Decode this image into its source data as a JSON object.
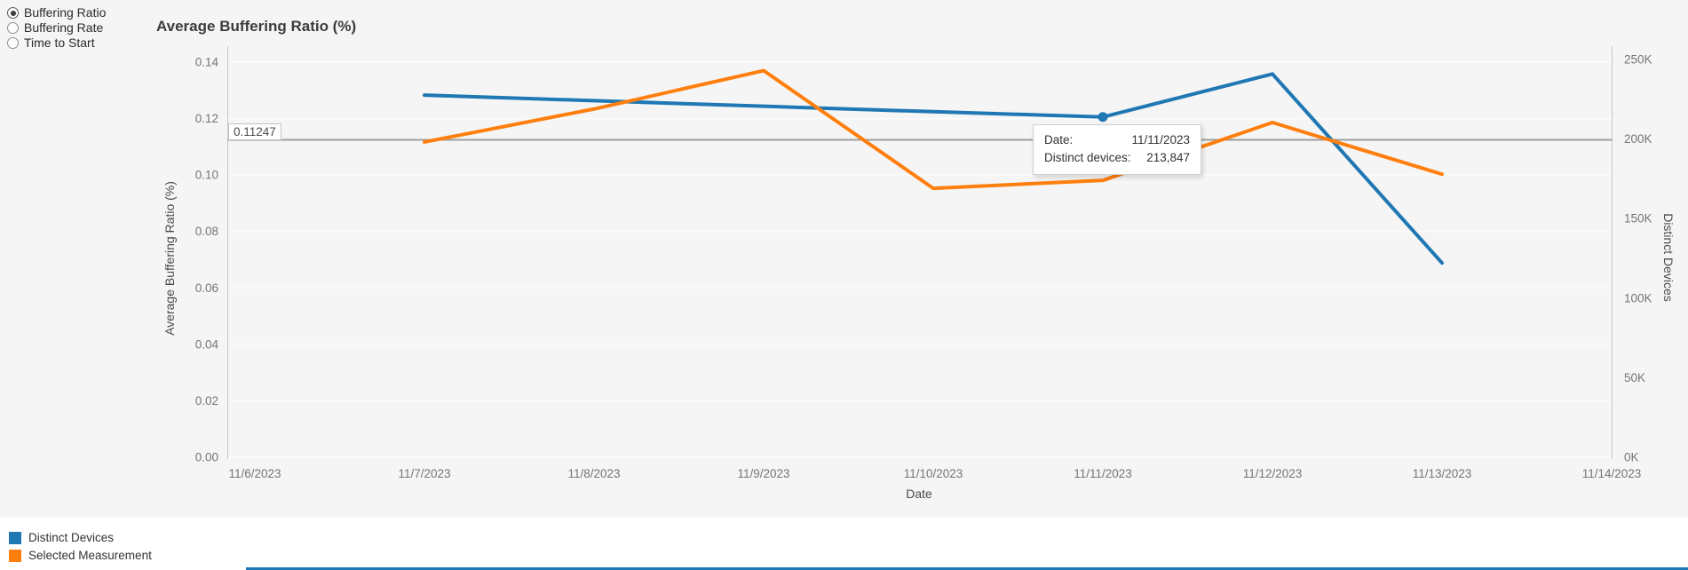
{
  "controls": {
    "radios": [
      {
        "label": "Buffering Ratio",
        "selected": true
      },
      {
        "label": "Buffering Rate",
        "selected": false
      },
      {
        "label": "Time to Start",
        "selected": false
      }
    ]
  },
  "chart": {
    "title": "Average Buffering Ratio (%)"
  },
  "chart_data": {
    "type": "line",
    "title": "Average Buffering Ratio (%)",
    "xlabel": "Date",
    "categories": [
      "11/6/2023",
      "11/7/2023",
      "11/8/2023",
      "11/9/2023",
      "11/10/2023",
      "11/11/2023",
      "11/12/2023",
      "11/13/2023",
      "11/14/2023"
    ],
    "left_axis": {
      "label": "Average Buffering Ratio (%)",
      "min": 0,
      "max": 0.14,
      "ticks": [
        {
          "v": 0.0,
          "label": "0.00"
        },
        {
          "v": 0.02,
          "label": "0.02"
        },
        {
          "v": 0.04,
          "label": "0.04"
        },
        {
          "v": 0.06,
          "label": "0.06"
        },
        {
          "v": 0.08,
          "label": "0.08"
        },
        {
          "v": 0.1,
          "label": "0.10"
        },
        {
          "v": 0.12,
          "label": "0.12"
        },
        {
          "v": 0.14,
          "label": "0.14"
        }
      ]
    },
    "right_axis": {
      "label": "Distinct Devices",
      "min": 0,
      "max": 250000,
      "ticks": [
        {
          "v": 0,
          "label": "0K"
        },
        {
          "v": 50000,
          "label": "50K"
        },
        {
          "v": 100000,
          "label": "100K"
        },
        {
          "v": 150000,
          "label": "150K"
        },
        {
          "v": 200000,
          "label": "200K"
        },
        {
          "v": 250000,
          "label": "250K"
        }
      ]
    },
    "reference_line": {
      "value": 0.11247,
      "label": "0.11247",
      "axis": "left",
      "color": "#9e9e9e"
    },
    "series": [
      {
        "name": "Distinct Devices",
        "color": "#1f77b4",
        "axis": "right",
        "x": [
          "11/7/2023",
          "11/8/2023",
          "11/9/2023",
          "11/10/2023",
          "11/11/2023",
          "11/12/2023",
          "11/13/2023"
        ],
        "values": [
          227600,
          224100,
          220600,
          217200,
          213847,
          240900,
          122100
        ]
      },
      {
        "name": "Selected Measurement",
        "color": "#ff7f0e",
        "axis": "left",
        "x": [
          "11/7/2023",
          "11/8/2023",
          "11/9/2023",
          "11/10/2023",
          "11/11/2023",
          "11/12/2023",
          "11/13/2023"
        ],
        "values": [
          0.1117,
          0.1234,
          0.137,
          0.0953,
          0.0981,
          0.1186,
          0.1003
        ]
      }
    ],
    "marker": {
      "series": "Distinct Devices",
      "x": "11/11/2023",
      "value": 213847
    },
    "legend_position": "bottom-left",
    "grid": true
  },
  "tooltip": {
    "rows": [
      {
        "label": "Date:",
        "value": "11/11/2023"
      },
      {
        "label": "Distinct devices:",
        "value": "213,847"
      }
    ]
  },
  "legend": {
    "items": [
      {
        "label": "Distinct Devices",
        "color": "#1f77b4"
      },
      {
        "label": "Selected Measurement",
        "color": "#ff7f0e"
      }
    ]
  },
  "colors": {
    "panel_bg": "#f5f5f5",
    "grid": "#fbfbfb",
    "axis_line": "#c8c8c8",
    "tick_text": "#757575",
    "blue": "#1f77b4",
    "orange": "#ff7f0e",
    "reference": "#9e9e9e"
  }
}
